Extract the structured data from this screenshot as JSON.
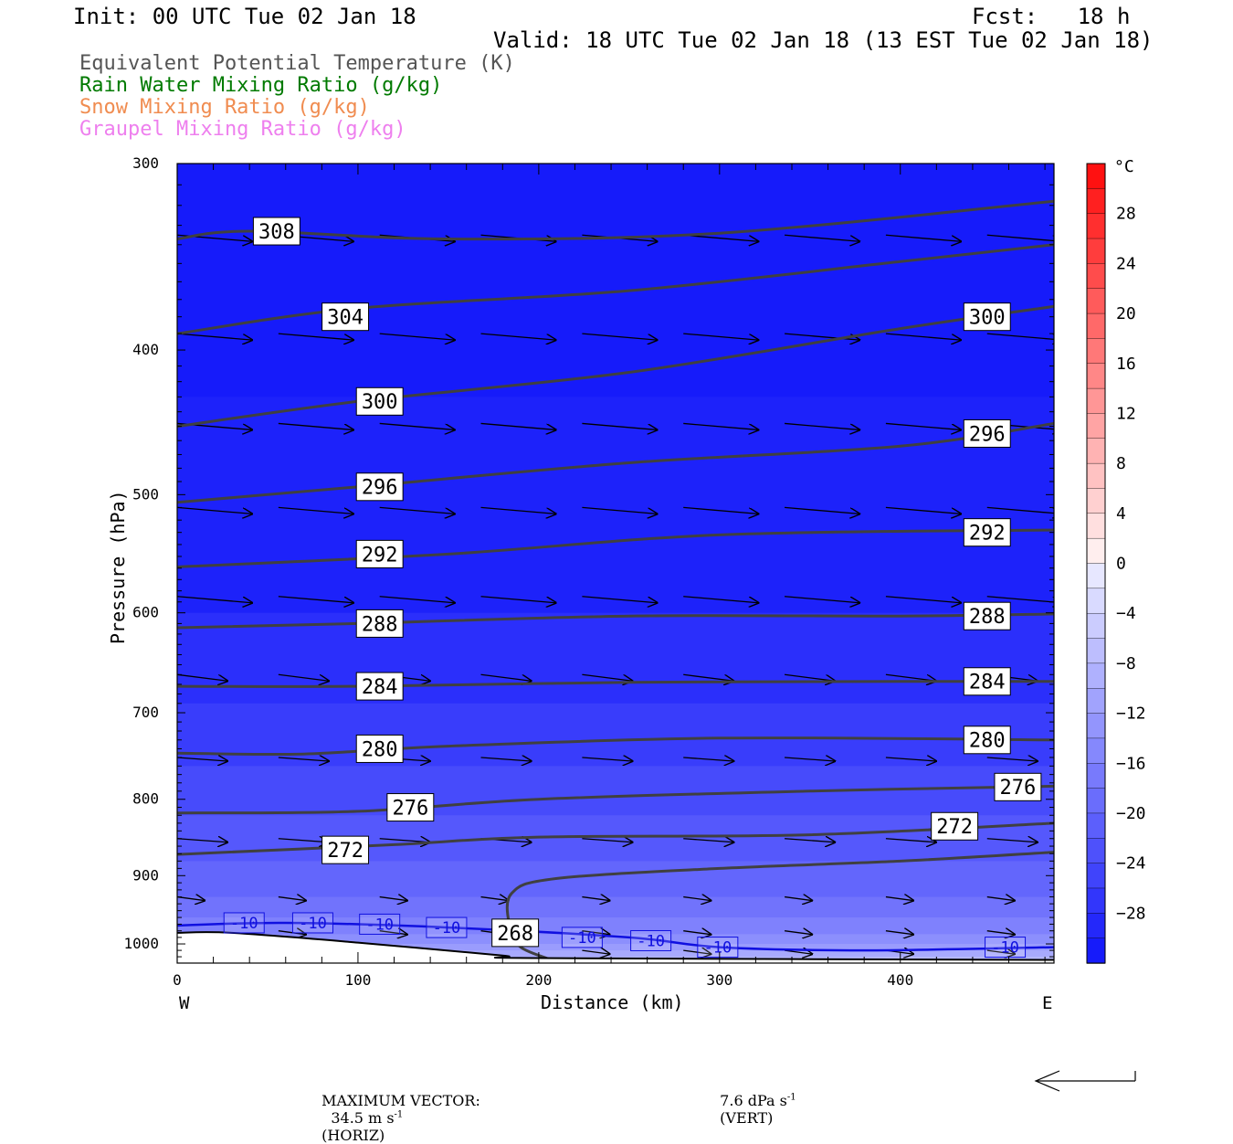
{
  "header": {
    "init": "Init: 00 UTC Tue 02 Jan 18",
    "fcst": "Fcst:   18 h",
    "valid": "Valid: 18 UTC Tue 02 Jan 18 (13 EST Tue 02 Jan 18)"
  },
  "legend": [
    {
      "label": "Equivalent Potential Temperature (K)",
      "color": "#555555"
    },
    {
      "label": "Rain Water Mixing Ratio (g/kg)",
      "color": "#007a00"
    },
    {
      "label": "Snow Mixing Ratio (g/kg)",
      "color": "#f08c50"
    },
    {
      "label": "Graupel Mixing Ratio (g/kg)",
      "color": "#ee7fee"
    }
  ],
  "chart_data": {
    "type": "cross-section",
    "xlabel": "Distance (km)",
    "ylabel": "Pressure (hPa)",
    "xlim": [
      0,
      485
    ],
    "ylim": [
      1030,
      300
    ],
    "y_scale": "log",
    "x_ticks": [
      "0",
      "100",
      "200",
      "300",
      "400"
    ],
    "y_ticks": [
      "300",
      "400",
      "500",
      "600",
      "700",
      "800",
      "900",
      "1000"
    ],
    "west_label": "W",
    "east_label": "E",
    "colorbar": {
      "unit": "°C",
      "labels": [
        "28",
        "24",
        "20",
        "16",
        "12",
        "8",
        "4",
        "0",
        "-4",
        "-8",
        "-12",
        "-16",
        "-20",
        "-24",
        "-28"
      ],
      "levels": [
        32,
        30,
        28,
        26,
        24,
        22,
        20,
        18,
        16,
        14,
        12,
        10,
        8,
        6,
        4,
        2,
        0,
        -2,
        -4,
        -6,
        -8,
        -10,
        -12,
        -14,
        -16,
        -18,
        -20,
        -22,
        -24,
        -26,
        -28,
        -30,
        -32
      ]
    },
    "theta_e_contours": [
      {
        "label": "308",
        "points": [
          [
            0,
            337
          ],
          [
            40,
            333
          ],
          [
            150,
            337
          ],
          [
            300,
            334
          ],
          [
            485,
            318
          ]
        ]
      },
      {
        "label": "304",
        "points": [
          [
            0,
            390
          ],
          [
            100,
            375
          ],
          [
            250,
            365
          ],
          [
            400,
            349
          ],
          [
            485,
            340
          ]
        ]
      },
      {
        "label": "300",
        "points": [
          [
            0,
            450
          ],
          [
            100,
            433
          ],
          [
            250,
            414
          ],
          [
            400,
            387
          ],
          [
            485,
            374
          ]
        ]
      },
      {
        "label": "296",
        "points": [
          [
            0,
            506
          ],
          [
            100,
            494
          ],
          [
            250,
            476
          ],
          [
            400,
            464
          ],
          [
            485,
            448
          ]
        ]
      },
      {
        "label": "292",
        "points": [
          [
            0,
            559
          ],
          [
            150,
            548
          ],
          [
            300,
            532
          ],
          [
            485,
            528
          ]
        ]
      },
      {
        "label": "288",
        "points": [
          [
            0,
            614
          ],
          [
            100,
            610
          ],
          [
            250,
            603
          ],
          [
            400,
            603
          ],
          [
            485,
            601
          ]
        ]
      },
      {
        "label": "284",
        "points": [
          [
            0,
            672
          ],
          [
            100,
            672
          ],
          [
            250,
            668
          ],
          [
            400,
            667
          ],
          [
            485,
            667
          ]
        ]
      },
      {
        "label": "280",
        "points": [
          [
            0,
            745
          ],
          [
            70,
            746
          ],
          [
            150,
            737
          ],
          [
            300,
            728
          ],
          [
            485,
            730
          ]
        ]
      },
      {
        "label": "276",
        "points": [
          [
            0,
            817
          ],
          [
            100,
            815
          ],
          [
            200,
            800
          ],
          [
            350,
            790
          ],
          [
            485,
            784
          ]
        ]
      },
      {
        "label": "272",
        "points": [
          [
            0,
            871
          ],
          [
            120,
            858
          ],
          [
            200,
            848
          ],
          [
            350,
            845
          ],
          [
            485,
            830
          ]
        ]
      },
      {
        "label": "268",
        "points": [
          [
            207,
            1025
          ],
          [
            190,
            1005
          ],
          [
            184,
            975
          ],
          [
            185,
            925
          ],
          [
            210,
            904
          ],
          [
            300,
            890
          ],
          [
            400,
            880
          ],
          [
            485,
            868
          ]
        ]
      }
    ],
    "temperature_contour": {
      "label": "-10",
      "points": [
        [
          0,
          972
        ],
        [
          60,
          968
        ],
        [
          150,
          975
        ],
        [
          250,
          990
        ],
        [
          300,
          1005
        ],
        [
          380,
          1010
        ],
        [
          485,
          1005
        ]
      ]
    },
    "terrain_pressure": [
      [
        0,
        983
      ],
      [
        30,
        983
      ],
      [
        100,
        998
      ],
      [
        180,
        1018
      ],
      [
        200,
        1022
      ],
      [
        485,
        1025
      ]
    ],
    "temperature_bands_celsius": [
      -31,
      -30,
      -28,
      -26,
      -24,
      -22,
      -20,
      -18,
      -16,
      -14,
      -12,
      -10,
      -8
    ],
    "max_vector": {
      "label": "MAXIMUM VECTOR:",
      "horiz": "34.5 m s",
      "horiz_suffix": "(HORIZ)",
      "vert": "7.6 dPa s",
      "vert_suffix": "(VERT)",
      "exponent": "-1"
    }
  }
}
